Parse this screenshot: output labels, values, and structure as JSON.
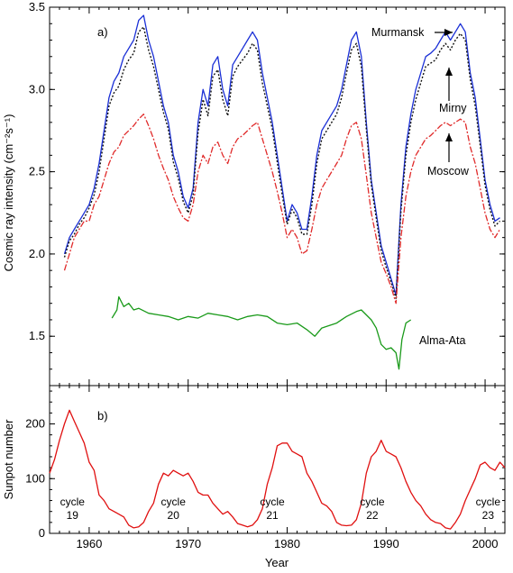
{
  "chart_data": [
    {
      "type": "line",
      "panel_tag": "a)",
      "ylabel": "Cosmic ray intensity (cm⁻²s⁻¹)",
      "xlim": [
        1956,
        2002
      ],
      "ylim": [
        1.2,
        3.5
      ],
      "yticks": [
        "1.5",
        "2.0",
        "2.5",
        "3.0",
        "3.5"
      ],
      "ytick_values": [
        1.5,
        2.0,
        2.5,
        3.0,
        3.5
      ],
      "series": [
        {
          "name": "Murmansk",
          "color": "#1a2fd6",
          "style": "solid",
          "x": [
            1957.5,
            1958,
            1958.5,
            1959,
            1959.5,
            1960,
            1960.5,
            1961,
            1961.5,
            1962,
            1962.5,
            1963,
            1963.5,
            1964,
            1964.5,
            1965,
            1965.5,
            1966,
            1966.5,
            1967,
            1967.5,
            1968,
            1968.5,
            1969,
            1969.5,
            1970,
            1970.5,
            1971,
            1971.5,
            1972,
            1972.5,
            1973,
            1973.5,
            1974,
            1974.5,
            1975,
            1975.5,
            1976,
            1976.5,
            1977,
            1977.5,
            1978,
            1978.5,
            1979,
            1979.5,
            1980,
            1980.5,
            1981,
            1981.5,
            1982,
            1982.5,
            1983,
            1983.5,
            1984,
            1984.5,
            1985,
            1985.5,
            1986,
            1986.5,
            1987,
            1987.5,
            1988,
            1988.5,
            1989,
            1989.5,
            1990,
            1990.5,
            1991,
            1991.5,
            1992,
            1992.5,
            1993,
            1993.5,
            1994,
            1994.5,
            1995,
            1995.5,
            1996,
            1996.5,
            1997,
            1997.5,
            1998,
            1998.5,
            1999,
            1999.5,
            2000,
            2000.5,
            2001,
            2001.5
          ],
          "y": [
            2.0,
            2.1,
            2.15,
            2.2,
            2.25,
            2.3,
            2.4,
            2.55,
            2.75,
            2.95,
            3.05,
            3.1,
            3.2,
            3.25,
            3.3,
            3.42,
            3.45,
            3.3,
            3.2,
            3.05,
            2.9,
            2.8,
            2.6,
            2.5,
            2.35,
            2.28,
            2.4,
            2.8,
            3.0,
            2.9,
            3.15,
            3.2,
            3.0,
            2.9,
            3.15,
            3.2,
            3.25,
            3.3,
            3.35,
            3.3,
            3.1,
            2.95,
            2.8,
            2.6,
            2.4,
            2.2,
            2.3,
            2.25,
            2.15,
            2.15,
            2.35,
            2.6,
            2.75,
            2.8,
            2.85,
            2.9,
            3.0,
            3.15,
            3.3,
            3.35,
            3.2,
            2.8,
            2.45,
            2.25,
            2.05,
            1.95,
            1.85,
            1.75,
            2.3,
            2.65,
            2.85,
            3.0,
            3.1,
            3.2,
            3.22,
            3.25,
            3.3,
            3.35,
            3.3,
            3.35,
            3.4,
            3.35,
            3.1,
            2.95,
            2.7,
            2.45,
            2.3,
            2.2,
            2.22
          ]
        },
        {
          "name": "Mirny",
          "color": "#111111",
          "style": "dotted",
          "x": [
            1957.5,
            1958,
            1958.5,
            1959,
            1959.5,
            1960,
            1960.5,
            1961,
            1961.5,
            1962,
            1962.5,
            1963,
            1963.5,
            1964,
            1964.5,
            1965,
            1965.5,
            1966,
            1966.5,
            1967,
            1967.5,
            1968,
            1968.5,
            1969,
            1969.5,
            1970,
            1970.5,
            1971,
            1971.5,
            1972,
            1972.5,
            1973,
            1973.5,
            1974,
            1974.5,
            1975,
            1975.5,
            1976,
            1976.5,
            1977,
            1977.5,
            1978,
            1978.5,
            1979,
            1979.5,
            1980,
            1980.5,
            1981,
            1981.5,
            1982,
            1982.5,
            1983,
            1983.5,
            1984,
            1984.5,
            1985,
            1985.5,
            1986,
            1986.5,
            1987,
            1987.5,
            1988,
            1988.5,
            1989,
            1989.5,
            1990,
            1990.5,
            1991,
            1991.5,
            1992,
            1992.5,
            1993,
            1993.5,
            1994,
            1994.5,
            1995,
            1995.5,
            1996,
            1996.5,
            1997,
            1997.5,
            1998,
            1998.5,
            1999,
            1999.5,
            2000,
            2000.5,
            2001,
            2001.5
          ],
          "y": [
            1.98,
            2.08,
            2.12,
            2.18,
            2.22,
            2.28,
            2.36,
            2.5,
            2.7,
            2.9,
            2.98,
            3.02,
            3.12,
            3.18,
            3.22,
            3.35,
            3.38,
            3.24,
            3.14,
            3.0,
            2.86,
            2.76,
            2.56,
            2.46,
            2.32,
            2.25,
            2.36,
            2.74,
            2.94,
            2.84,
            3.08,
            3.12,
            2.94,
            2.84,
            3.08,
            3.14,
            3.18,
            3.22,
            3.28,
            3.24,
            3.04,
            2.9,
            2.76,
            2.56,
            2.36,
            2.18,
            2.27,
            2.22,
            2.12,
            2.12,
            2.3,
            2.55,
            2.7,
            2.75,
            2.8,
            2.85,
            2.95,
            3.1,
            3.24,
            3.28,
            3.14,
            2.76,
            2.42,
            2.22,
            2.02,
            1.92,
            1.83,
            1.73,
            2.26,
            2.6,
            2.8,
            2.94,
            3.04,
            3.14,
            3.16,
            3.18,
            3.24,
            3.28,
            3.24,
            3.3,
            3.34,
            3.3,
            3.06,
            2.9,
            2.66,
            2.42,
            2.27,
            2.17,
            2.2
          ]
        },
        {
          "name": "Moscow",
          "color": "#e02a2a",
          "style": "dashdot",
          "x": [
            1957.5,
            1958,
            1958.5,
            1959,
            1959.5,
            1960,
            1960.5,
            1961,
            1961.5,
            1962,
            1962.5,
            1963,
            1963.5,
            1964,
            1964.5,
            1965,
            1965.5,
            1966,
            1966.5,
            1967,
            1967.5,
            1968,
            1968.5,
            1969,
            1969.5,
            1970,
            1970.5,
            1971,
            1971.5,
            1972,
            1972.5,
            1973,
            1973.5,
            1974,
            1974.5,
            1975,
            1975.5,
            1976,
            1976.5,
            1977,
            1977.5,
            1978,
            1978.5,
            1979,
            1979.5,
            1980,
            1980.5,
            1981,
            1981.5,
            1982,
            1982.5,
            1983,
            1983.5,
            1984,
            1984.5,
            1985,
            1985.5,
            1986,
            1986.5,
            1987,
            1987.5,
            1988,
            1988.5,
            1989,
            1989.5,
            1990,
            1990.5,
            1991,
            1991.5,
            1992,
            1992.5,
            1993,
            1993.5,
            1994,
            1994.5,
            1995,
            1995.5,
            1996,
            1996.5,
            1997,
            1997.5,
            1998,
            1998.5,
            1999,
            1999.5,
            2000,
            2000.5,
            2001,
            2001.5
          ],
          "y": [
            1.9,
            2.0,
            2.1,
            2.15,
            2.2,
            2.2,
            2.3,
            2.35,
            2.45,
            2.55,
            2.62,
            2.65,
            2.72,
            2.75,
            2.78,
            2.82,
            2.85,
            2.78,
            2.7,
            2.6,
            2.52,
            2.45,
            2.35,
            2.28,
            2.22,
            2.2,
            2.3,
            2.5,
            2.6,
            2.55,
            2.65,
            2.68,
            2.6,
            2.55,
            2.65,
            2.7,
            2.72,
            2.75,
            2.78,
            2.8,
            2.7,
            2.6,
            2.5,
            2.38,
            2.25,
            2.1,
            2.15,
            2.1,
            2.0,
            2.02,
            2.15,
            2.3,
            2.4,
            2.45,
            2.5,
            2.55,
            2.6,
            2.7,
            2.78,
            2.8,
            2.7,
            2.48,
            2.25,
            2.1,
            1.95,
            1.88,
            1.8,
            1.7,
            2.1,
            2.35,
            2.5,
            2.6,
            2.65,
            2.7,
            2.72,
            2.75,
            2.78,
            2.8,
            2.78,
            2.8,
            2.82,
            2.8,
            2.65,
            2.55,
            2.4,
            2.25,
            2.15,
            2.1,
            2.15
          ]
        },
        {
          "name": "Alma-Ata",
          "color": "#1a9a1a",
          "style": "solid",
          "x": [
            1962.3,
            1962.8,
            1963,
            1963.5,
            1964,
            1964.5,
            1965,
            1966,
            1967,
            1968,
            1969,
            1970,
            1971,
            1972,
            1973,
            1974,
            1975,
            1976,
            1977,
            1978,
            1979,
            1980,
            1981,
            1982,
            1982.8,
            1983.5,
            1984,
            1985,
            1986,
            1987,
            1987.5,
            1988,
            1988.5,
            1989,
            1989.5,
            1990,
            1990.5,
            1991,
            1991.3,
            1991.6,
            1992,
            1992.5
          ],
          "y": [
            1.61,
            1.66,
            1.74,
            1.68,
            1.7,
            1.66,
            1.67,
            1.64,
            1.63,
            1.62,
            1.6,
            1.62,
            1.61,
            1.64,
            1.63,
            1.62,
            1.6,
            1.62,
            1.63,
            1.62,
            1.58,
            1.57,
            1.58,
            1.54,
            1.5,
            1.55,
            1.56,
            1.58,
            1.62,
            1.65,
            1.66,
            1.63,
            1.6,
            1.55,
            1.45,
            1.42,
            1.43,
            1.4,
            1.3,
            1.48,
            1.58,
            1.6
          ]
        }
      ],
      "annotations": [
        {
          "text": "Murmansk",
          "x": 1995.8,
          "y": 3.38
        },
        {
          "text": "Mirny",
          "x": 1995.8,
          "y": 2.92
        },
        {
          "text": "Moscow",
          "x": 1995.8,
          "y": 2.52
        },
        {
          "text": "Alma-Ata",
          "x": 1993.4,
          "y": 1.54
        }
      ]
    },
    {
      "type": "line",
      "panel_tag": "b)",
      "xlabel": "Year",
      "ylabel": "Sunpot number",
      "xlim": [
        1956,
        2002
      ],
      "ylim": [
        0,
        270
      ],
      "yticks": [
        "0",
        "100",
        "200"
      ],
      "ytick_values": [
        0,
        100,
        200
      ],
      "xticks": [
        "1960",
        "1970",
        "1980",
        "1990",
        "2000"
      ],
      "xtick_values": [
        1960,
        1970,
        1980,
        1990,
        2000
      ],
      "series": [
        {
          "name": "Sunspot number",
          "color": "#e01010",
          "style": "solid",
          "x": [
            1956,
            1956.5,
            1957,
            1957.5,
            1958,
            1958.5,
            1959,
            1959.5,
            1960,
            1960.5,
            1961,
            1961.5,
            1962,
            1962.5,
            1963,
            1963.5,
            1964,
            1964.5,
            1965,
            1965.5,
            1966,
            1966.5,
            1967,
            1967.5,
            1968,
            1968.5,
            1969,
            1969.5,
            1970,
            1970.5,
            1971,
            1971.5,
            1972,
            1972.5,
            1973,
            1973.5,
            1974,
            1974.5,
            1975,
            1975.5,
            1976,
            1976.5,
            1977,
            1977.5,
            1978,
            1978.5,
            1979,
            1979.5,
            1980,
            1980.5,
            1981,
            1981.5,
            1982,
            1982.5,
            1983,
            1983.5,
            1984,
            1984.5,
            1985,
            1985.5,
            1986,
            1986.5,
            1987,
            1987.5,
            1988,
            1988.5,
            1989,
            1989.5,
            1990,
            1990.5,
            1991,
            1991.5,
            1992,
            1992.5,
            1993,
            1993.5,
            1994,
            1994.5,
            1995,
            1995.5,
            1996,
            1996.5,
            1997,
            1997.5,
            1998,
            1998.5,
            1999,
            1999.5,
            2000,
            2000.5,
            2001,
            2001.5,
            2002
          ],
          "y": [
            110,
            135,
            170,
            200,
            225,
            205,
            185,
            165,
            130,
            115,
            70,
            60,
            45,
            40,
            35,
            30,
            15,
            10,
            12,
            20,
            40,
            55,
            90,
            110,
            105,
            115,
            110,
            105,
            110,
            95,
            75,
            70,
            70,
            55,
            45,
            35,
            40,
            30,
            18,
            15,
            12,
            15,
            25,
            45,
            90,
            120,
            160,
            165,
            165,
            150,
            145,
            140,
            110,
            95,
            75,
            55,
            50,
            40,
            20,
            15,
            14,
            15,
            25,
            55,
            110,
            140,
            150,
            170,
            150,
            145,
            140,
            120,
            95,
            75,
            60,
            50,
            35,
            25,
            20,
            18,
            10,
            8,
            20,
            35,
            60,
            80,
            100,
            125,
            130,
            120,
            115,
            130,
            120
          ]
        }
      ],
      "cycle_labels": [
        {
          "text": "cycle\n19",
          "x": 1958.3
        },
        {
          "text": "cycle\n20",
          "x": 1968.5
        },
        {
          "text": "cycle\n21",
          "x": 1978.5
        },
        {
          "text": "cycle\n22",
          "x": 1988.6
        },
        {
          "text": "cycle\n23",
          "x": 2000.3
        }
      ]
    }
  ]
}
